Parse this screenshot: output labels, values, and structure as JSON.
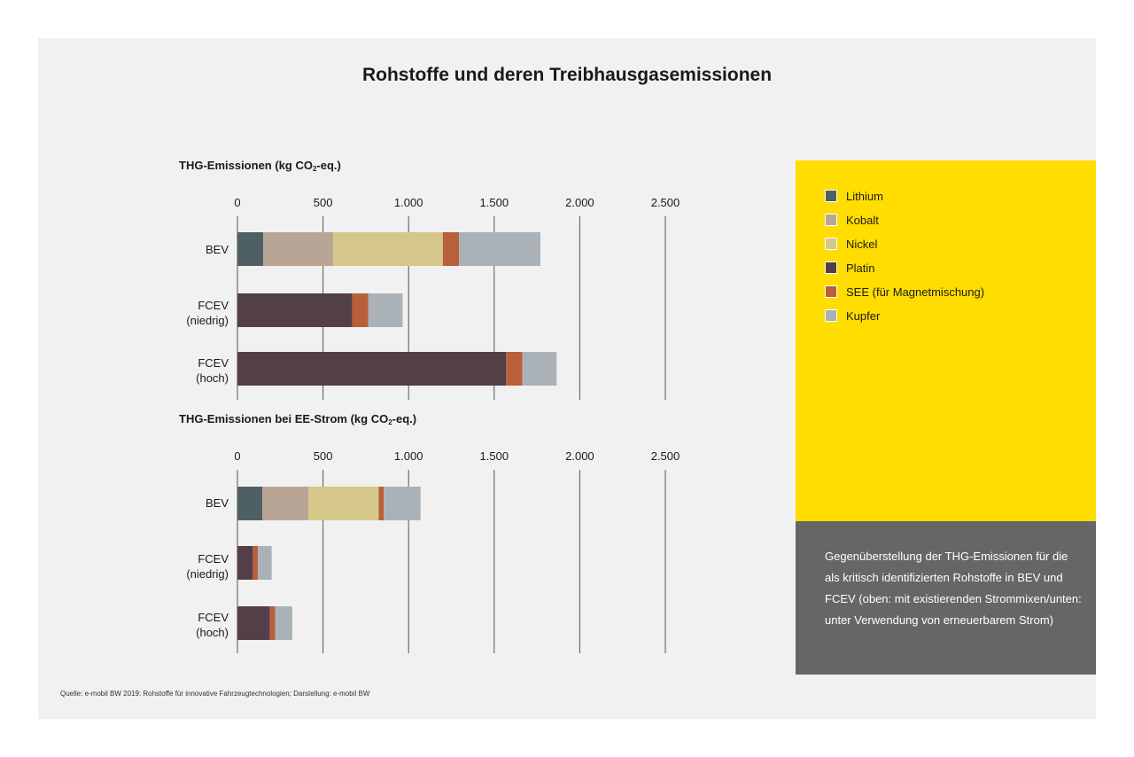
{
  "title": "Rohstoffe und deren Treibhausgasemissionen",
  "colors": {
    "background": "#f1f1f1",
    "legend_bg": "#ffdd00",
    "description_bg": "#666666",
    "gridline": "#555555"
  },
  "legend": [
    {
      "label": "Lithium",
      "color": "#4f5f66"
    },
    {
      "label": "Kobalt",
      "color": "#b9a596"
    },
    {
      "label": "Nickel",
      "color": "#d6c78a"
    },
    {
      "label": "Platin",
      "color": "#533f48"
    },
    {
      "label": "SEE (für Magnetmischung)",
      "color": "#b8603a"
    },
    {
      "label": "Kupfer",
      "color": "#aab2b7"
    }
  ],
  "description": "Gegenüberstellung der THG-Emissionen für die als kritisch identifizierten Rohstoffe in BEV und FCEV (oben: mit existierenden Strommixen/unten: unter Verwendung von erneuerbarem Strom)",
  "source": "Quelle: e-mobil BW 2019: Rohstoffe für innovative Fahrzeugtechnologien; Darstellung: e-mobil BW",
  "chart_data": [
    {
      "type": "bar",
      "orientation": "horizontal",
      "stacked": true,
      "title_main": "THG-Emissionen (kg CO",
      "title_sub": "2",
      "title_tail": "-eq.)",
      "xlim": [
        0,
        2500
      ],
      "ticks": [
        0,
        500,
        1000,
        1500,
        2000,
        2500
      ],
      "tick_labels": [
        "0",
        "500",
        "1.000",
        "1.500",
        "2.000",
        "2.500"
      ],
      "grid": true,
      "categories": [
        {
          "line1": "BEV",
          "line2": ""
        },
        {
          "line1": "FCEV",
          "line2": "(niedrig)"
        },
        {
          "line1": "FCEV",
          "line2": "(hoch)"
        }
      ],
      "series": [
        {
          "name": "Lithium",
          "values": [
            150,
            0,
            0
          ]
        },
        {
          "name": "Kobalt",
          "values": [
            410,
            0,
            0
          ]
        },
        {
          "name": "Nickel",
          "values": [
            640,
            0,
            0
          ]
        },
        {
          "name": "Platin",
          "values": [
            0,
            670,
            1570
          ]
        },
        {
          "name": "SEE (für Magnetmischung)",
          "values": [
            95,
            95,
            95
          ]
        },
        {
          "name": "Kupfer",
          "values": [
            475,
            200,
            200
          ]
        }
      ]
    },
    {
      "type": "bar",
      "orientation": "horizontal",
      "stacked": true,
      "title_main": "THG-Emissionen bei EE-Strom (kg CO",
      "title_sub": "2",
      "title_tail": "-eq.)",
      "xlim": [
        0,
        2500
      ],
      "ticks": [
        0,
        500,
        1000,
        1500,
        2000,
        2500
      ],
      "tick_labels": [
        "0",
        "500",
        "1.000",
        "1.500",
        "2.000",
        "2.500"
      ],
      "grid": true,
      "categories": [
        {
          "line1": "BEV",
          "line2": ""
        },
        {
          "line1": "FCEV",
          "line2": "(niedrig)"
        },
        {
          "line1": "FCEV",
          "line2": "(hoch)"
        }
      ],
      "series": [
        {
          "name": "Lithium",
          "values": [
            145,
            0,
            0
          ]
        },
        {
          "name": "Kobalt",
          "values": [
            270,
            0,
            0
          ]
        },
        {
          "name": "Nickel",
          "values": [
            410,
            0,
            0
          ]
        },
        {
          "name": "Platin",
          "values": [
            0,
            90,
            190
          ]
        },
        {
          "name": "SEE (für Magnetmischung)",
          "values": [
            30,
            30,
            30
          ]
        },
        {
          "name": "Kupfer",
          "values": [
            215,
            80,
            100
          ]
        }
      ]
    }
  ]
}
